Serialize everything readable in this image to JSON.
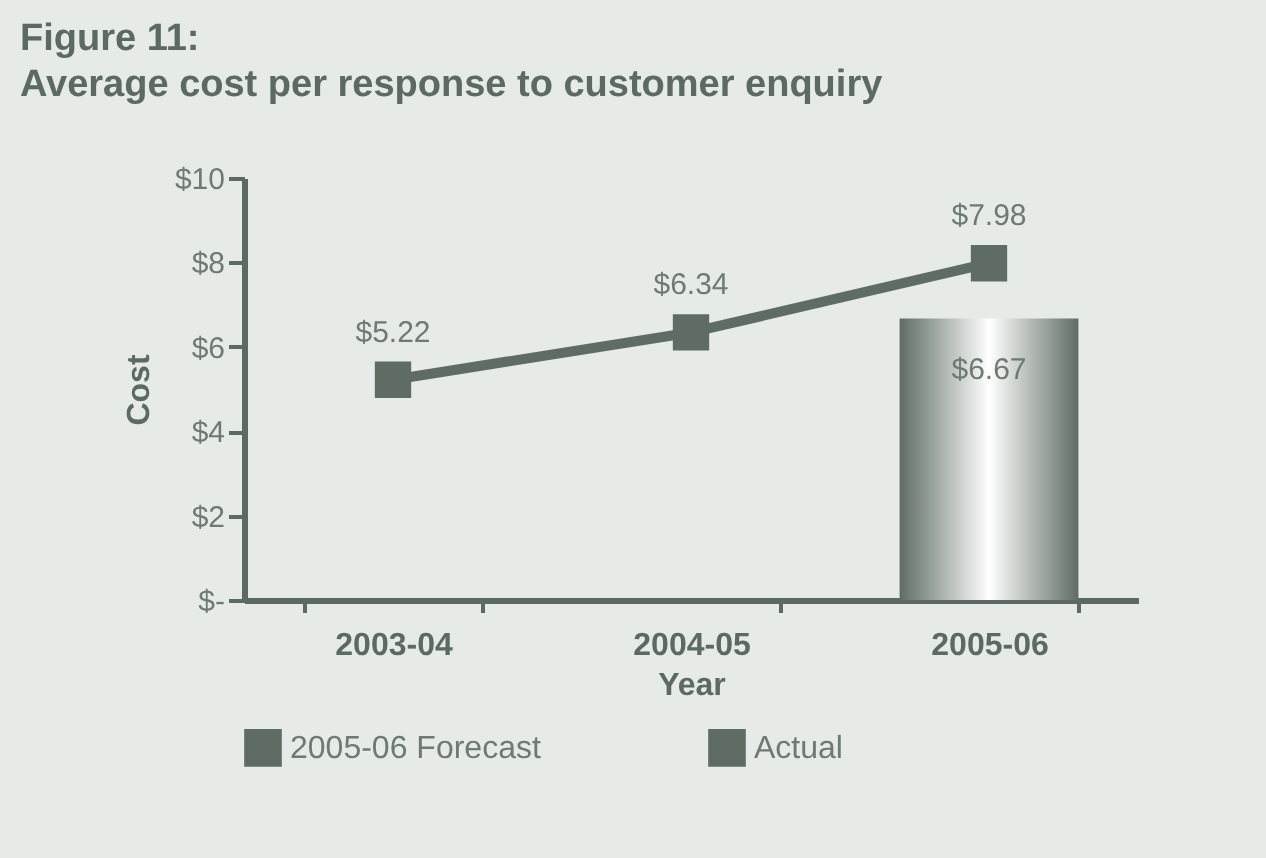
{
  "chart_data": {
    "type": "line",
    "title": "Figure 11:",
    "subtitle": "Average cost per response to customer enquiry",
    "xlabel": "Year",
    "ylabel": "Cost",
    "categories": [
      "2003-04",
      "2004-05",
      "2005-06"
    ],
    "series": [
      {
        "name": "2005-06 Forecast",
        "type": "bar",
        "color": "#5f6c64",
        "values": [
          null,
          null,
          6.67
        ],
        "value_labels": [
          null,
          null,
          "$6.67"
        ]
      },
      {
        "name": "Actual",
        "color": "#5f6c64",
        "values": [
          5.22,
          6.34,
          7.98
        ],
        "value_labels": [
          "$5.22",
          "$6.34",
          "$7.98"
        ]
      }
    ],
    "ylim": [
      0,
      10
    ],
    "yticks": [
      {
        "value": 0,
        "label": "$-"
      },
      {
        "value": 2,
        "label": "$2"
      },
      {
        "value": 4,
        "label": "$4"
      },
      {
        "value": 6,
        "label": "$6"
      },
      {
        "value": 8,
        "label": "$8"
      },
      {
        "value": 10,
        "label": "$10"
      }
    ],
    "marker": "square",
    "grid": false,
    "legend": "bottom"
  }
}
